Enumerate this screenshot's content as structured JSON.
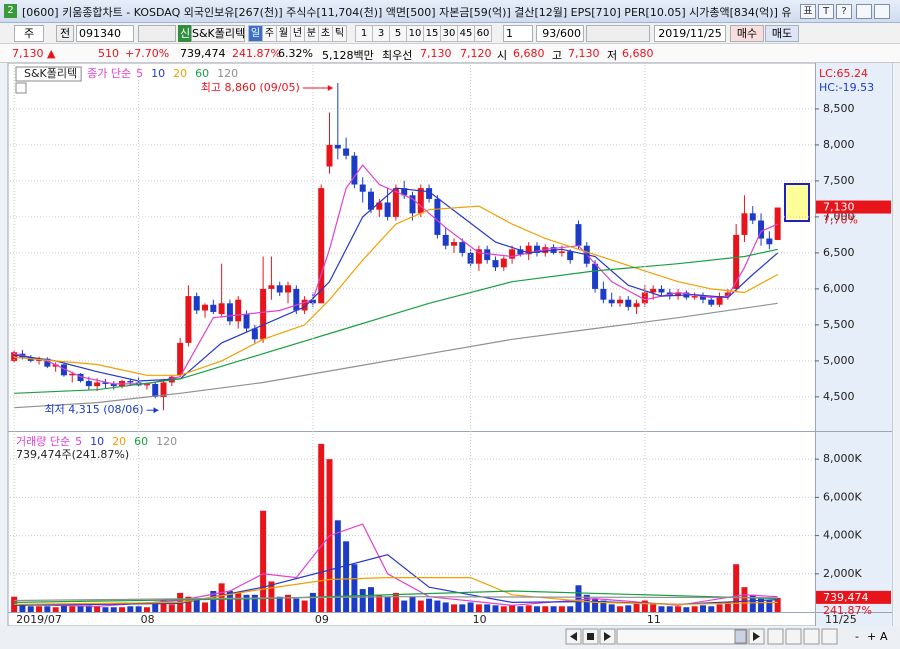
{
  "window": {
    "number": "2",
    "title": "[0600] 키움종합차트 - KOSDAQ 외국인보유[267(천)] 주식수[11,704(천)] 액면[500] 자본금[59(억)] 결산[12월] EPS[710] PER[10.05] 시가총액[834(억)] 유",
    "icons": [
      "표",
      "T",
      "?"
    ]
  },
  "toolbar": {
    "market": "주",
    "prev": "전",
    "code": "091340",
    "badge": "신",
    "name": "S&K폴리텍",
    "periods": [
      "일",
      "주",
      "월",
      "년",
      "분",
      "초",
      "틱"
    ],
    "intervals": [
      "1",
      "3",
      "5",
      "10",
      "15",
      "30",
      "45",
      "60"
    ],
    "count_input": "1",
    "count": "93/600",
    "date": "2019/11/25",
    "buy": "매수",
    "sell": "매도"
  },
  "quote": {
    "price": "7,130 ▲",
    "change": "510",
    "change_pct": "+7.70%",
    "volume": "739,474",
    "volume_ratio": "241.87%",
    "turnover": "6.32%",
    "amount": "5,128백만",
    "best_label": "최우선",
    "ask": "7,130",
    "bid": "7,120",
    "open_label": "시",
    "open": "6,680",
    "high_label": "고",
    "high": "7,130",
    "low_label": "저",
    "low": "6,680"
  },
  "zoom": [
    "-",
    "+",
    "A"
  ],
  "chart_data": [
    {
      "type": "candlestick",
      "name": "S&K폴리텍",
      "legend_label": "종가 단순",
      "up_color": "#e8141c",
      "down_color": "#1c3cc8",
      "open": [
        5000,
        5100,
        5050,
        5000,
        5030,
        4920,
        4950,
        4800,
        4820,
        4720,
        4650,
        4700,
        4680,
        4650,
        4720,
        4700,
        4660,
        4680,
        4500,
        4700,
        4800,
        5250,
        5900,
        5700,
        5780,
        5650,
        5800,
        5550,
        5650,
        5450,
        5300,
        6000,
        6050,
        5950,
        6000,
        5700,
        5850,
        5800,
        7700,
        8000,
        7950,
        7850,
        7450,
        7350,
        7100,
        7200,
        7000,
        7400,
        7300,
        7050,
        7400,
        7250,
        6750,
        6600,
        6650,
        6500,
        6350,
        6550,
        6400,
        6300,
        6420,
        6550,
        6480,
        6600,
        6500,
        6580,
        6500,
        6520,
        6900,
        6600,
        6350,
        6000,
        5850,
        5800,
        5850,
        5750,
        5800,
        5950,
        6000,
        5950,
        5900,
        5950,
        5880,
        5900,
        5850,
        5780,
        5900,
        6000,
        6750,
        7050,
        6950,
        6700,
        6680
      ],
      "high": [
        5150,
        5150,
        5080,
        5060,
        5050,
        4980,
        4960,
        4850,
        4830,
        4780,
        4760,
        4750,
        4720,
        4740,
        4750,
        4780,
        4700,
        4700,
        4720,
        4800,
        5320,
        6050,
        5950,
        5800,
        5850,
        6350,
        5850,
        5900,
        5700,
        5500,
        6450,
        6450,
        6100,
        6100,
        6050,
        5900,
        5950,
        7450,
        8450,
        8860,
        8100,
        7900,
        7550,
        7400,
        7250,
        7400,
        7450,
        7500,
        7350,
        7450,
        7450,
        7300,
        6850,
        6700,
        6700,
        6550,
        6600,
        6600,
        6450,
        6450,
        6600,
        6600,
        6650,
        6650,
        6620,
        6620,
        6600,
        6550,
        6950,
        6650,
        6400,
        6100,
        5950,
        5900,
        5900,
        5850,
        6050,
        6050,
        6050,
        6000,
        6000,
        5980,
        5950,
        5950,
        5900,
        5950,
        6000,
        6900,
        7300,
        7150,
        7050,
        6800,
        7130
      ],
      "low": [
        4980,
        5020,
        4980,
        4950,
        4900,
        4850,
        4780,
        4700,
        4700,
        4600,
        4580,
        4620,
        4600,
        4620,
        4650,
        4640,
        4600,
        4480,
        4315,
        4650,
        4780,
        5200,
        5650,
        5600,
        5650,
        5600,
        5500,
        5450,
        5400,
        5250,
        5250,
        5850,
        5900,
        5800,
        5650,
        5650,
        5750,
        5800,
        7600,
        7800,
        7800,
        7400,
        7200,
        7050,
        7000,
        6950,
        6950,
        7250,
        6950,
        7000,
        7200,
        6700,
        6550,
        6500,
        6450,
        6300,
        6250,
        6350,
        6250,
        6250,
        6350,
        6450,
        6400,
        6450,
        6450,
        6480,
        6450,
        6350,
        6550,
        6300,
        5950,
        5800,
        5750,
        5750,
        5700,
        5650,
        5750,
        5850,
        5900,
        5850,
        5850,
        5850,
        5850,
        5800,
        5750,
        5750,
        5850,
        5950,
        6650,
        6900,
        6600,
        6550,
        6680
      ],
      "close": [
        5120,
        5050,
        5000,
        5030,
        4920,
        4950,
        4800,
        4820,
        4720,
        4650,
        4700,
        4680,
        4650,
        4720,
        4700,
        4660,
        4680,
        4500,
        4700,
        4780,
        5250,
        5900,
        5700,
        5780,
        5680,
        5800,
        5550,
        5850,
        5450,
        5300,
        6000,
        6050,
        5950,
        6050,
        5700,
        5850,
        5800,
        7400,
        8000,
        7950,
        7850,
        7450,
        7350,
        7100,
        7200,
        7000,
        7400,
        7300,
        7050,
        7400,
        7250,
        6750,
        6600,
        6650,
        6500,
        6350,
        6550,
        6400,
        6300,
        6420,
        6550,
        6480,
        6600,
        6500,
        6580,
        6500,
        6520,
        6400,
        6600,
        6350,
        6000,
        5850,
        5800,
        5850,
        5750,
        5800,
        5950,
        6000,
        5950,
        5900,
        5950,
        5880,
        5900,
        5850,
        5780,
        5900,
        5950,
        6750,
        7050,
        6950,
        6700,
        6620,
        7130
      ],
      "series": [
        {
          "name": "5",
          "color": "#e040d0",
          "x": [
            0,
            4,
            8,
            12,
            16,
            20,
            24,
            28,
            32,
            36,
            38,
            40,
            42,
            44,
            48,
            52,
            56,
            60,
            64,
            68,
            72,
            76,
            80,
            84,
            86,
            88,
            90,
            92
          ],
          "values": [
            5100,
            5000,
            4780,
            4680,
            4680,
            4780,
            5600,
            5650,
            5700,
            5850,
            6550,
            7400,
            7720,
            7450,
            7250,
            6850,
            6500,
            6450,
            6550,
            6600,
            6100,
            5850,
            5950,
            5880,
            5900,
            6300,
            6800,
            6900
          ]
        },
        {
          "name": "10",
          "color": "#2838c8",
          "x": [
            0,
            5,
            10,
            15,
            20,
            25,
            30,
            35,
            38,
            42,
            46,
            50,
            54,
            58,
            62,
            66,
            70,
            74,
            78,
            82,
            86,
            89,
            92
          ],
          "values": [
            5080,
            5000,
            4850,
            4720,
            4750,
            5250,
            5500,
            5750,
            6100,
            7000,
            7400,
            7350,
            7000,
            6650,
            6500,
            6550,
            6450,
            6050,
            5900,
            5920,
            5880,
            6200,
            6500
          ]
        },
        {
          "name": "20",
          "color": "#f0a000",
          "x": [
            0,
            10,
            16,
            20,
            25,
            30,
            35,
            38,
            42,
            46,
            50,
            56,
            60,
            64,
            68,
            72,
            76,
            80,
            84,
            88,
            92
          ],
          "values": [
            5050,
            4950,
            4800,
            4800,
            5000,
            5300,
            5500,
            5850,
            6400,
            6900,
            7100,
            7150,
            6900,
            6700,
            6550,
            6400,
            6250,
            6100,
            6000,
            5950,
            6200
          ]
        },
        {
          "name": "60",
          "color": "#18a040",
          "x": [
            0,
            10,
            20,
            30,
            40,
            50,
            60,
            70,
            80,
            88,
            92
          ],
          "values": [
            4550,
            4600,
            4750,
            5100,
            5450,
            5800,
            6100,
            6250,
            6350,
            6450,
            6550
          ]
        },
        {
          "name": "120",
          "color": "#909090",
          "x": [
            0,
            10,
            20,
            30,
            40,
            50,
            60,
            70,
            80,
            92
          ],
          "values": [
            4350,
            4420,
            4550,
            4700,
            4900,
            5100,
            5300,
            5450,
            5600,
            5800
          ]
        }
      ],
      "xlim": [
        -0.5,
        96.5
      ],
      "ylim": [
        4040,
        9110
      ],
      "yticks": [
        {
          "value": 4500,
          "label": "4,500"
        },
        {
          "value": 5000,
          "label": "5,000"
        },
        {
          "value": 5500,
          "label": "5,500"
        },
        {
          "value": 6000,
          "label": "6,000"
        },
        {
          "value": 6500,
          "label": "6,500"
        },
        {
          "value": 7000,
          "label": "7,000"
        },
        {
          "value": 7500,
          "label": "7,500"
        },
        {
          "value": 8000,
          "label": "8,000"
        },
        {
          "value": 8500,
          "label": "8,500"
        }
      ],
      "grid": true,
      "annotations": [
        {
          "text": "최고 8,860 (09/05)",
          "x": 39,
          "value": 8860,
          "color": "#e8141c"
        },
        {
          "text": "최저 4,315 (08/06)",
          "x": 18,
          "value": 4315,
          "color": "#1c3cc8"
        }
      ],
      "indicators": [
        {
          "text": "LC:65.24",
          "color": "#e8141c"
        },
        {
          "text": "HC:-19.53",
          "color": "#1c3cc8"
        }
      ],
      "last_label": "7,130",
      "change_label": "7,70%"
    },
    {
      "type": "bar",
      "legend_label": "거래량 단순",
      "status": "739,474주(241.87%)",
      "values": [
        800000,
        400000,
        300000,
        300000,
        300000,
        250000,
        350000,
        300000,
        300000,
        350000,
        300000,
        250000,
        250000,
        250000,
        300000,
        300000,
        250000,
        450000,
        600000,
        400000,
        1000000,
        800000,
        700000,
        500000,
        1100000,
        1500000,
        1100000,
        1000000,
        900000,
        900000,
        5300000,
        1600000,
        800000,
        900000,
        700000,
        600000,
        1000000,
        8800000,
        8000000,
        4800000,
        3700000,
        2500000,
        1200000,
        1300000,
        900000,
        800000,
        1000000,
        600000,
        800000,
        600000,
        700000,
        600000,
        500000,
        400000,
        400000,
        500000,
        400000,
        400000,
        350000,
        300000,
        350000,
        300000,
        350000,
        300000,
        300000,
        300000,
        300000,
        300000,
        1400000,
        900000,
        700000,
        600000,
        400000,
        300000,
        350000,
        500000,
        600000,
        400000,
        300000,
        300000,
        300000,
        250000,
        300000,
        350000,
        300000,
        400000,
        500000,
        2500000,
        1300000,
        900000,
        700000,
        600000,
        739474
      ],
      "series": [
        {
          "name": "5",
          "color": "#e040d0",
          "x": [
            0,
            10,
            20,
            26,
            30,
            34,
            38,
            42,
            45,
            50,
            60,
            70,
            80,
            88,
            92
          ],
          "values": [
            400000,
            300000,
            600000,
            1100000,
            2000000,
            1800000,
            4000000,
            4600000,
            2000000,
            800000,
            350000,
            700000,
            350000,
            900000,
            800000
          ]
        },
        {
          "name": "10",
          "color": "#2838c8",
          "x": [
            0,
            20,
            30,
            38,
            45,
            50,
            60,
            70,
            80,
            92
          ],
          "values": [
            350000,
            450000,
            1300000,
            2200000,
            3000000,
            1300000,
            500000,
            550000,
            400000,
            650000
          ]
        },
        {
          "name": "20",
          "color": "#f0a000",
          "x": [
            0,
            20,
            30,
            38,
            45,
            55,
            60,
            70,
            80,
            92
          ],
          "values": [
            400000,
            500000,
            1200000,
            1700000,
            1800000,
            1800000,
            900000,
            500000,
            400000,
            500000
          ]
        },
        {
          "name": "60",
          "color": "#18a040",
          "x": [
            0,
            30,
            60,
            92
          ],
          "values": [
            500000,
            700000,
            1100000,
            700000
          ]
        },
        {
          "name": "120",
          "color": "#909090",
          "x": [
            0,
            46,
            92
          ],
          "values": [
            600000,
            800000,
            750000
          ]
        }
      ],
      "xlim": [
        -0.5,
        96.5
      ],
      "ylim": [
        0,
        9370000
      ],
      "yticks": [
        {
          "value": 2000000,
          "label": "2,000K"
        },
        {
          "value": 4000000,
          "label": "4,000K"
        },
        {
          "value": 6000000,
          "label": "6,000K"
        },
        {
          "value": 8000000,
          "label": "8,000K"
        }
      ],
      "xticks": [
        {
          "value": 0,
          "label": "2019/07"
        },
        {
          "value": 15,
          "label": "08"
        },
        {
          "value": 36,
          "label": "09"
        },
        {
          "value": 55,
          "label": "10"
        },
        {
          "value": 76,
          "label": "11"
        }
      ],
      "last_date": "11/25",
      "grid": true,
      "last_label": "739,474",
      "change_label": "241.87%"
    }
  ]
}
